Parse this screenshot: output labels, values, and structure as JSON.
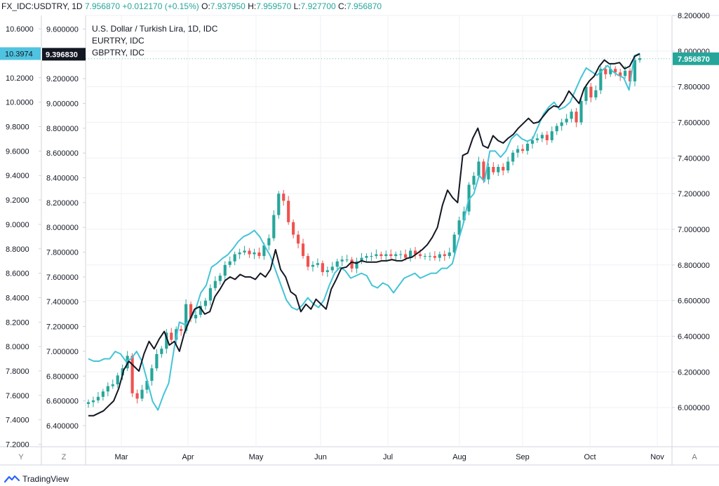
{
  "header": {
    "symbol": "FX_IDC:USDTRY, 1D",
    "last": "7.956870",
    "change": "+0.012170 (+0.15%)",
    "o_label": "O:",
    "o": "7.937950",
    "h_label": "H:",
    "h": "7.959570",
    "l_label": "L:",
    "l": "7.927700",
    "c_label": "C:",
    "c": "7.956870"
  },
  "legend": {
    "main": "U.S. Dollar / Turkish Lira, 1D, IDC",
    "s1": "EURTRY, IDC",
    "s2": "GBPTRY, IDC"
  },
  "brand": {
    "name": "TradingView"
  },
  "chart_data": {
    "type": "candlestick",
    "title": "U.S. Dollar / Turkish Lira, 1D, IDC",
    "x_months": [
      "Mar",
      "Apr",
      "May",
      "Jun",
      "Jul",
      "Aug",
      "Sep",
      "Oct",
      "Nov"
    ],
    "corner_labels": {
      "left_scale": "Y",
      "mid_scale": "Z",
      "right_scale": "A"
    },
    "axes": {
      "right_usdtry": {
        "range": [
          5.78,
          8.2
        ],
        "ticks": [
          "8.200000",
          "8.000000",
          "7.800000",
          "7.600000",
          "7.400000",
          "7.200000",
          "7.000000",
          "6.800000",
          "6.600000",
          "6.400000",
          "6.200000",
          "6.000000"
        ]
      },
      "mid_eurtry": {
        "range": [
          6.23,
          9.71
        ],
        "ticks": [
          "9.600000",
          "9.400000",
          "9.200000",
          "9.000000",
          "8.800000",
          "8.600000",
          "8.400000",
          "8.200000",
          "8.000000",
          "7.800000",
          "7.600000",
          "7.400000",
          "7.200000",
          "7.000000",
          "6.800000",
          "6.600000",
          "6.400000"
        ]
      },
      "left_gbptry": {
        "range": [
          7.18,
          10.71
        ],
        "ticks": [
          "10.6000",
          "10.4000",
          "10.2000",
          "10.0000",
          "9.8000",
          "9.6000",
          "9.4000",
          "9.2000",
          "9.0000",
          "8.8000",
          "8.6000",
          "8.4000",
          "8.2000",
          "8.0000",
          "7.8000",
          "7.6000",
          "7.4000",
          "7.2000"
        ]
      }
    },
    "current_labels": {
      "usdtry": "7.956870",
      "eurtry": "9.396830",
      "gbptry": "10.3974"
    },
    "usdtry_close": [
      6.03,
      6.04,
      6.06,
      6.09,
      6.12,
      6.13,
      6.18,
      6.22,
      6.29,
      6.08,
      6.05,
      6.1,
      6.15,
      6.22,
      6.3,
      6.33,
      6.42,
      6.38,
      6.44,
      6.43,
      6.58,
      6.5,
      6.52,
      6.57,
      6.6,
      6.67,
      6.71,
      6.74,
      6.8,
      6.82,
      6.86,
      6.87,
      6.88,
      6.86,
      6.87,
      6.85,
      6.91,
      6.95,
      7.08,
      7.2,
      7.16,
      7.04,
      6.97,
      6.92,
      6.85,
      6.79,
      6.8,
      6.81,
      6.76,
      6.77,
      6.79,
      6.82,
      6.83,
      6.83,
      6.78,
      6.82,
      6.84,
      6.85,
      6.85,
      6.86,
      6.85,
      6.86,
      6.85,
      6.86,
      6.86,
      6.84,
      6.88,
      6.86,
      6.85,
      6.85,
      6.85,
      6.84,
      6.86,
      6.85,
      6.87,
      6.97,
      7.05,
      7.1,
      7.25,
      7.3,
      7.38,
      7.28,
      7.35,
      7.32,
      7.35,
      7.33,
      7.38,
      7.43,
      7.45,
      7.44,
      7.48,
      7.5,
      7.51,
      7.53,
      7.5,
      7.55,
      7.58,
      7.6,
      7.62,
      7.66,
      7.6,
      7.72,
      7.8,
      7.74,
      7.78,
      7.9,
      7.87,
      7.9,
      7.88,
      7.86,
      7.89,
      7.83,
      7.95,
      7.96
    ],
    "eurtry_line": [
      6.48,
      6.48,
      6.5,
      6.52,
      6.56,
      6.6,
      6.7,
      6.85,
      6.92,
      6.88,
      6.84,
      6.98,
      7.08,
      7.02,
      7.1,
      7.16,
      7.05,
      7.08,
      7.0,
      7.15,
      7.25,
      7.34,
      7.36,
      7.3,
      7.32,
      7.44,
      7.5,
      7.57,
      7.6,
      7.58,
      7.62,
      7.6,
      7.6,
      7.58,
      7.63,
      7.6,
      7.66,
      7.82,
      7.66,
      7.6,
      7.48,
      7.45,
      7.32,
      7.38,
      7.34,
      7.42,
      7.38,
      7.34,
      7.5,
      7.58,
      7.67,
      7.68,
      7.72,
      7.71,
      7.73,
      7.72,
      7.72,
      7.72,
      7.73,
      7.73,
      7.74,
      7.73,
      7.73,
      7.75,
      7.76,
      7.79,
      7.82,
      7.86,
      7.92,
      8.0,
      8.18,
      8.3,
      8.24,
      8.2,
      8.58,
      8.6,
      8.72,
      8.8,
      8.66,
      8.64,
      8.74,
      8.7,
      8.68,
      8.72,
      8.75,
      8.8,
      8.84,
      8.88,
      8.84,
      8.85,
      8.9,
      8.95,
      8.98,
      8.97,
      9.02,
      9.1,
      9.05,
      9.0,
      9.12,
      9.18,
      9.22,
      9.3,
      9.35,
      9.32,
      9.32,
      9.33,
      9.28,
      9.3,
      9.38,
      9.4
    ],
    "gbptry_line": [
      7.9,
      7.88,
      7.88,
      7.9,
      7.9,
      7.96,
      7.94,
      7.88,
      7.9,
      7.96,
      7.88,
      7.72,
      7.55,
      7.48,
      7.6,
      7.7,
      7.98,
      8.2,
      8.18,
      8.22,
      8.3,
      8.44,
      8.5,
      8.65,
      8.68,
      8.72,
      8.75,
      8.8,
      8.86,
      8.9,
      8.92,
      8.95,
      8.9,
      8.82,
      8.74,
      8.62,
      8.5,
      8.38,
      8.32,
      8.3,
      8.34,
      8.4,
      8.35,
      8.32,
      8.38,
      8.5,
      8.6,
      8.65,
      8.62,
      8.56,
      8.58,
      8.6,
      8.58,
      8.5,
      8.48,
      8.52,
      8.5,
      8.44,
      8.5,
      8.56,
      8.58,
      8.6,
      8.56,
      8.58,
      8.6,
      8.6,
      8.64,
      8.64,
      8.68,
      8.85,
      9.0,
      9.2,
      9.25,
      9.4,
      9.35,
      9.6,
      9.6,
      9.55,
      9.6,
      9.7,
      9.74,
      9.7,
      9.68,
      9.7,
      9.8,
      9.9,
      9.96,
      10.0,
      9.94,
      9.96,
      10.0,
      10.1,
      10.2,
      10.28,
      10.25,
      10.22,
      10.26,
      10.3,
      10.25,
      10.22,
      10.2,
      10.1,
      10.38,
      10.4
    ]
  },
  "colors": {
    "up": "#26a69a",
    "down": "#ef5350",
    "eurtry_line": "#131722",
    "gbptry_line": "#44c4d6",
    "grid": "#eef0f5",
    "axis_text": "#131722",
    "mid_label_bg": "#131722",
    "left_label_bg": "#4fc3e0",
    "right_label_bg": "#26a69a"
  }
}
